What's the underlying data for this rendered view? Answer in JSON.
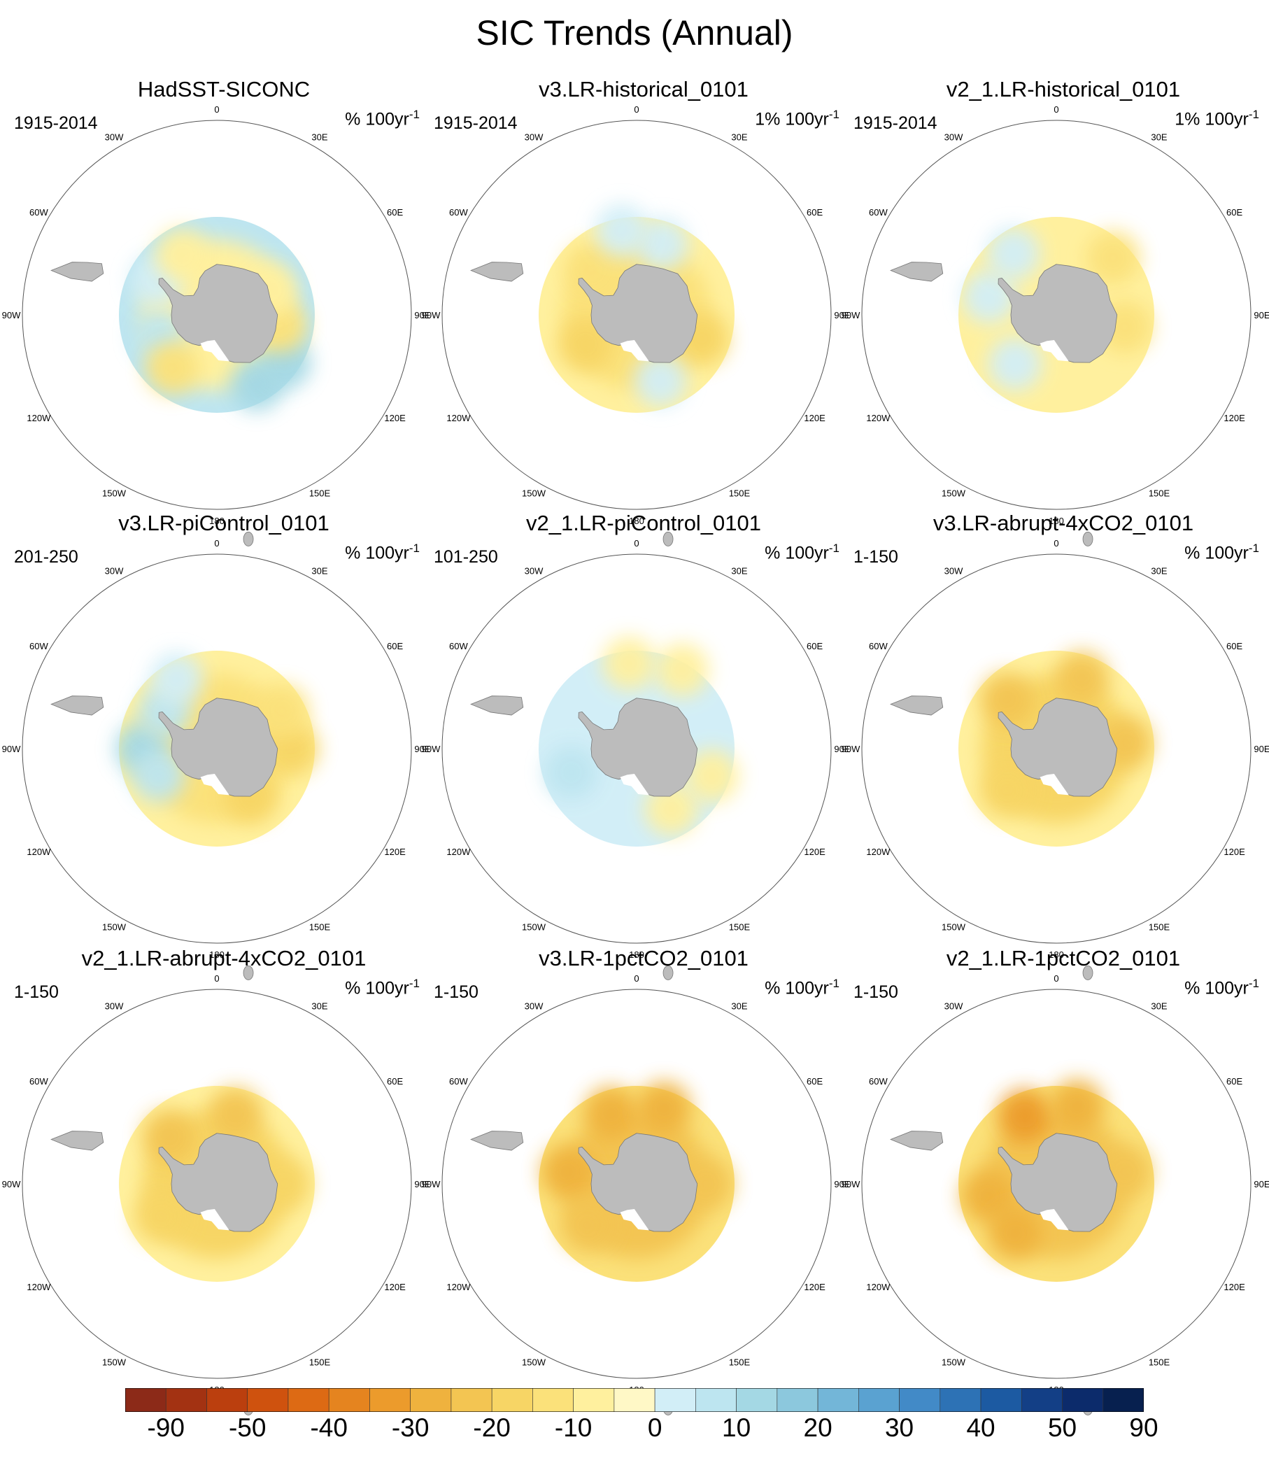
{
  "chart_data": {
    "type": "polar-stereographic-contour-map-grid",
    "title": "SIC Trends (Annual)",
    "region": "Southern Hemisphere (Antarctic sea ice)",
    "units": "% 100yr⁻¹",
    "longitude_labels": [
      "0",
      "30E",
      "60E",
      "90E",
      "120E",
      "150E",
      "180",
      "150W",
      "120W",
      "90W",
      "60W",
      "30W"
    ],
    "panels": [
      {
        "title": "HadSST-SICONC",
        "period": "1915-2014",
        "units_prefix": "% 100yr",
        "units_sup": "-1",
        "outer_class": 2,
        "inner_class": -1,
        "blobs": [
          {
            "lon": 150,
            "lat": -60,
            "class": 3
          },
          {
            "lon": 125,
            "lat": -59,
            "class": 3
          },
          {
            "lon": 100,
            "lat": -66,
            "class": -2
          },
          {
            "lon": 65,
            "lat": -68,
            "class": -1
          },
          {
            "lon": -110,
            "lat": -67,
            "class": 2
          },
          {
            "lon": -60,
            "lat": -64,
            "class": 1
          },
          {
            "lon": -30,
            "lat": -64,
            "class": -1
          },
          {
            "lon": -140,
            "lat": -64,
            "class": -2
          }
        ]
      },
      {
        "title": "v3.LR-historical_0101",
        "period": "1915-2014",
        "units_prefix": "1% 100yr",
        "units_sup": "-1",
        "outer_class": -1,
        "inner_class": -2,
        "blobs": [
          {
            "lon": -120,
            "lat": -68,
            "class": -3
          },
          {
            "lon": -45,
            "lat": -66,
            "class": -2
          },
          {
            "lon": 110,
            "lat": -64,
            "class": -3
          },
          {
            "lon": 20,
            "lat": -62,
            "class": 1
          },
          {
            "lon": -10,
            "lat": -58,
            "class": 1
          },
          {
            "lon": 160,
            "lat": -64,
            "class": 1
          }
        ]
      },
      {
        "title": "v2_1.LR-historical_0101",
        "period": "1915-2014",
        "units_prefix": "1% 100yr",
        "units_sup": "-1",
        "outer_class": -1,
        "inner_class": -1,
        "blobs": [
          {
            "lon": 45,
            "lat": -60,
            "class": -2
          },
          {
            "lon": 100,
            "lat": -64,
            "class": -2
          },
          {
            "lon": -75,
            "lat": -64,
            "class": 1
          },
          {
            "lon": -140,
            "lat": -66,
            "class": 1
          },
          {
            "lon": -35,
            "lat": -62,
            "class": 1
          }
        ]
      },
      {
        "title": "v3.LR-piControl_0101",
        "period": "201-250",
        "units_prefix": "% 100yr",
        "units_sup": "-1",
        "outer_class": -1,
        "inner_class": -2,
        "blobs": [
          {
            "lon": -90,
            "lat": -62,
            "class": 3
          },
          {
            "lon": -115,
            "lat": -66,
            "class": 2
          },
          {
            "lon": -55,
            "lat": -66,
            "class": 2
          },
          {
            "lon": -30,
            "lat": -60,
            "class": 1
          },
          {
            "lon": 90,
            "lat": -62,
            "class": -3
          },
          {
            "lon": 60,
            "lat": -62,
            "class": -2
          },
          {
            "lon": 145,
            "lat": -68,
            "class": -3
          }
        ]
      },
      {
        "title": "v2_1.LR-piControl_0101",
        "period": "101-250",
        "units_prefix": "% 100yr",
        "units_sup": "-1",
        "outer_class": 1,
        "inner_class": 1,
        "blobs": [
          {
            "lon": -110,
            "lat": -64,
            "class": 2
          },
          {
            "lon": 30,
            "lat": -56,
            "class": -1
          },
          {
            "lon": 150,
            "lat": -64,
            "class": -1
          },
          {
            "lon": -5,
            "lat": -58,
            "class": -1
          },
          {
            "lon": 110,
            "lat": -60,
            "class": -1
          }
        ]
      },
      {
        "title": "v3.LR-abrupt-4xCO2_0101",
        "period": "1-150",
        "units_prefix": "% 100yr",
        "units_sup": "-1",
        "outer_class": -1,
        "inner_class": -3,
        "blobs": [
          {
            "lon": -45,
            "lat": -64,
            "class": -4
          },
          {
            "lon": 20,
            "lat": -62,
            "class": -4
          },
          {
            "lon": 85,
            "lat": -64,
            "class": -4
          },
          {
            "lon": -130,
            "lat": -66,
            "class": -3
          }
        ]
      },
      {
        "title": "v2_1.LR-abrupt-4xCO2_0101",
        "period": "1-150",
        "units_prefix": "% 100yr",
        "units_sup": "-1",
        "outer_class": -1,
        "inner_class": -3,
        "blobs": [
          {
            "lon": 15,
            "lat": -63,
            "class": -4
          },
          {
            "lon": -45,
            "lat": -65,
            "class": -4
          },
          {
            "lon": 90,
            "lat": -65,
            "class": -3
          },
          {
            "lon": -120,
            "lat": -66,
            "class": -3
          }
        ]
      },
      {
        "title": "v3.LR-1pctCO2_0101",
        "period": "1-150",
        "units_prefix": "% 100yr",
        "units_sup": "-1",
        "outer_class": -2,
        "inner_class": -4,
        "blobs": [
          {
            "lon": -20,
            "lat": -62,
            "class": -5
          },
          {
            "lon": 20,
            "lat": -60,
            "class": -5
          },
          {
            "lon": -80,
            "lat": -64,
            "class": -5
          },
          {
            "lon": -130,
            "lat": -66,
            "class": -4
          },
          {
            "lon": 90,
            "lat": -64,
            "class": -4
          }
        ]
      },
      {
        "title": "v2_1.LR-1pctCO2_0101",
        "period": "1-150",
        "units_prefix": "% 100yr",
        "units_sup": "-1",
        "outer_class": -2,
        "inner_class": -4,
        "blobs": [
          {
            "lon": -25,
            "lat": -62,
            "class": -6
          },
          {
            "lon": 15,
            "lat": -60,
            "class": -5
          },
          {
            "lon": -100,
            "lat": -64,
            "class": -5
          },
          {
            "lon": -140,
            "lat": -66,
            "class": -5
          },
          {
            "lon": 80,
            "lat": -64,
            "class": -4
          }
        ]
      }
    ],
    "colorbar": {
      "tick_labels": [
        "-90",
        "-50",
        "-40",
        "-30",
        "-20",
        "-10",
        "0",
        "10",
        "20",
        "30",
        "40",
        "50",
        "90"
      ],
      "colors": [
        "#8c2a18",
        "#a33212",
        "#bb3f0e",
        "#cf520e",
        "#dd6a14",
        "#e5841f",
        "#ec9b2c",
        "#efb23e",
        "#f3c552",
        "#f7d565",
        "#fbe17a",
        "#fff09e",
        "#fff8c6",
        "#d2eef7",
        "#bde5f0",
        "#a4d8e4",
        "#8cc8dd",
        "#73b6d8",
        "#5aa2d1",
        "#428ac7",
        "#2d72b5",
        "#1c5aa2",
        "#133f86",
        "#0c2b6b",
        "#07204f"
      ],
      "tick_every": 2
    }
  },
  "land_color": "#bcbcbc"
}
